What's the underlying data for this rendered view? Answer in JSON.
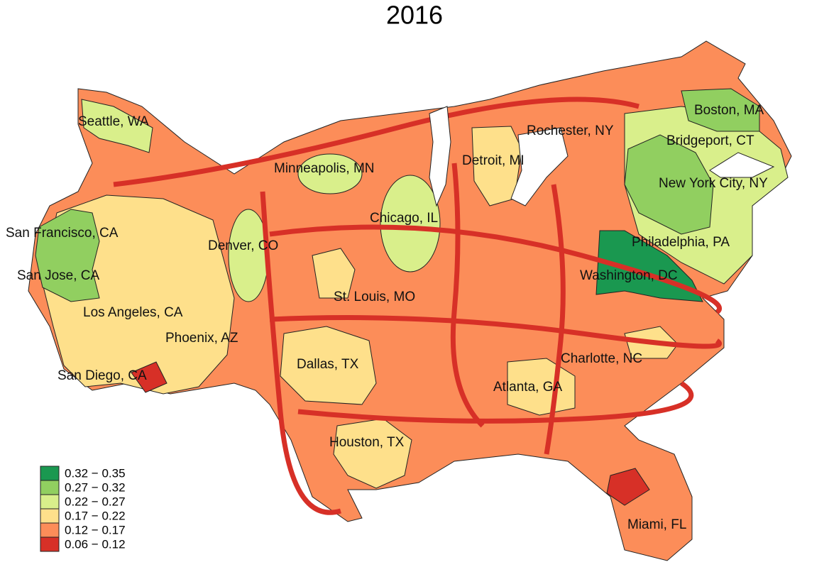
{
  "title": "2016",
  "cities": [
    "Seattle, WA",
    "Minneapolis, MN",
    "Rochester, NY",
    "Boston, MA",
    "Bridgeport, CT",
    "Detroit, MI",
    "New York City, NY",
    "San Francisco, CA",
    "Chicago, IL",
    "Denver, CO",
    "Philadelphia, PA",
    "San Jose, CA",
    "Washington, DC",
    "St. Louis, MO",
    "Los Angeles, CA",
    "Phoenix, AZ",
    "Charlotte, NC",
    "Dallas, TX",
    "San Diego, CA",
    "Atlanta, GA",
    "Houston, TX",
    "Miami, FL"
  ],
  "legend": [
    {
      "label": "0.32 − 0.35",
      "color": "#1a9850"
    },
    {
      "label": "0.27 − 0.32",
      "color": "#91cf60"
    },
    {
      "label": "0.22 − 0.27",
      "color": "#d9ef8b"
    },
    {
      "label": "0.17 − 0.22",
      "color": "#fee08b"
    },
    {
      "label": "0.12 − 0.17",
      "color": "#fc8d59"
    },
    {
      "label": "0.06 − 0.12",
      "color": "#d73027"
    }
  ]
}
